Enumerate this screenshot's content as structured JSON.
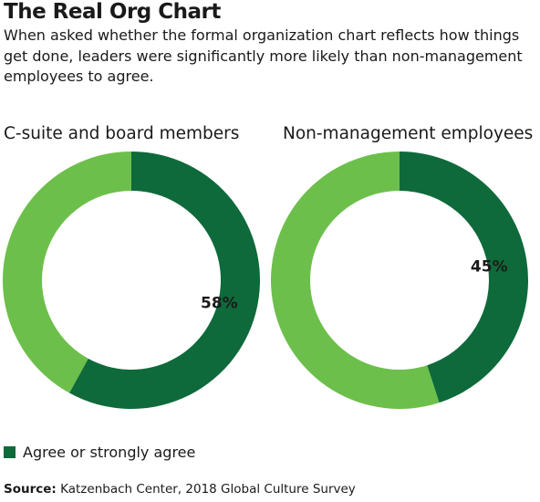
{
  "title": "The Real Org Chart",
  "subtitle": "When asked whether the formal organization chart reflects how things get done, leaders were significantly more likely than non-management employees to agree.",
  "colors": {
    "agree": "#0e6a3a",
    "other": "#6dbf4b",
    "text": "#1a1a1a"
  },
  "legend": {
    "label": "Agree or strongly agree"
  },
  "source": {
    "label": "Source:",
    "text": "Katzenbach Center, 2018 Global Culture Survey"
  },
  "chart_data": [
    {
      "type": "pie",
      "title": "C-suite and board members",
      "agree_percent": 58,
      "agree_label": "58%"
    },
    {
      "type": "pie",
      "title": "Non-management employees",
      "agree_percent": 45,
      "agree_label": "45%"
    }
  ]
}
